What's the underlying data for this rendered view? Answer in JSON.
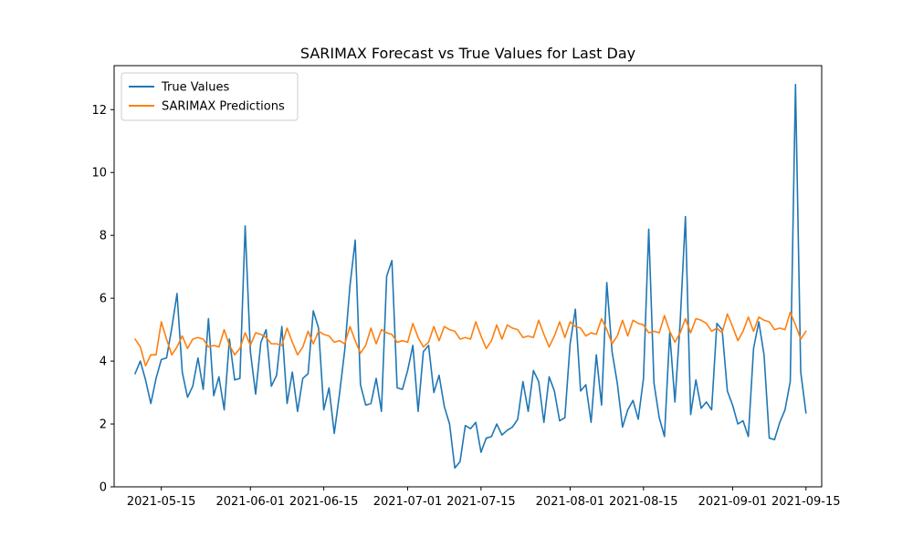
{
  "chart_data": {
    "type": "line",
    "title": "SARIMAX Forecast vs True Values for Last Day",
    "xlabel": "",
    "ylabel": "",
    "x_start": "2021-05-10",
    "x_tick_labels": [
      "2021-05-15",
      "2021-06-01",
      "2021-06-15",
      "2021-07-01",
      "2021-07-15",
      "2021-08-01",
      "2021-08-15",
      "2021-09-01",
      "2021-09-15"
    ],
    "y_ticks": [
      0,
      2,
      4,
      6,
      8,
      10,
      12
    ],
    "xlim": [
      "2021-05-06",
      "2021-09-18"
    ],
    "ylim": [
      0,
      13.4
    ],
    "grid": false,
    "legend_position": "top-left",
    "series": [
      {
        "name": "True Values",
        "color": "#1f77b4",
        "values": [
          3.6,
          4.0,
          3.4,
          2.65,
          3.45,
          4.05,
          4.1,
          5.05,
          6.15,
          3.65,
          2.85,
          3.2,
          4.1,
          3.1,
          5.35,
          2.9,
          3.5,
          2.45,
          4.7,
          3.4,
          3.45,
          8.3,
          4.3,
          2.95,
          4.6,
          5.0,
          3.2,
          3.55,
          5.1,
          2.65,
          3.65,
          2.4,
          3.45,
          3.6,
          5.6,
          5.05,
          2.45,
          3.15,
          1.7,
          2.95,
          4.35,
          6.4,
          7.85,
          3.25,
          2.6,
          2.65,
          3.45,
          2.4,
          6.7,
          7.2,
          3.15,
          3.1,
          3.7,
          4.5,
          2.4,
          4.3,
          4.5,
          3.0,
          3.55,
          2.55,
          2.0,
          0.6,
          0.8,
          1.95,
          1.85,
          2.05,
          1.1,
          1.55,
          1.6,
          2.0,
          1.65,
          1.8,
          1.9,
          2.15,
          3.35,
          2.4,
          3.7,
          3.35,
          2.05,
          3.5,
          3.05,
          2.1,
          2.2,
          4.55,
          5.65,
          3.05,
          3.25,
          2.05,
          4.2,
          2.6,
          6.5,
          4.3,
          3.3,
          1.9,
          2.45,
          2.75,
          2.15,
          3.45,
          8.2,
          3.3,
          2.2,
          1.6,
          4.9,
          2.7,
          5.25,
          8.6,
          2.3,
          3.4,
          2.5,
          2.7,
          2.45,
          5.2,
          5.0,
          3.05,
          2.6,
          2.0,
          2.1,
          1.6,
          4.4,
          5.25,
          4.2,
          1.55,
          1.5,
          2.05,
          2.45,
          3.35,
          12.8,
          3.65,
          2.35
        ]
      },
      {
        "name": "SARIMAX Predictions",
        "color": "#ff7f0e",
        "values": [
          4.7,
          4.45,
          3.85,
          4.2,
          4.2,
          5.25,
          4.7,
          4.2,
          4.45,
          4.8,
          4.4,
          4.7,
          4.75,
          4.7,
          4.45,
          4.5,
          4.45,
          5.0,
          4.5,
          4.2,
          4.4,
          4.9,
          4.5,
          4.9,
          4.85,
          4.75,
          4.55,
          4.55,
          4.5,
          5.05,
          4.6,
          4.2,
          4.45,
          4.95,
          4.55,
          4.95,
          4.85,
          4.8,
          4.6,
          4.65,
          4.55,
          5.1,
          4.65,
          4.25,
          4.5,
          5.05,
          4.55,
          5.0,
          4.9,
          4.85,
          4.6,
          4.65,
          4.6,
          5.2,
          4.75,
          4.45,
          4.6,
          5.1,
          4.65,
          5.1,
          5.0,
          4.95,
          4.7,
          4.75,
          4.7,
          5.25,
          4.8,
          4.4,
          4.65,
          5.15,
          4.7,
          5.15,
          5.05,
          5.0,
          4.75,
          4.8,
          4.75,
          5.3,
          4.85,
          4.45,
          4.8,
          5.25,
          4.75,
          5.25,
          5.1,
          5.05,
          4.8,
          4.9,
          4.85,
          5.35,
          5.0,
          4.55,
          4.8,
          5.3,
          4.8,
          5.3,
          5.2,
          5.15,
          4.9,
          4.95,
          4.9,
          5.45,
          4.95,
          4.6,
          4.9,
          5.35,
          4.9,
          5.35,
          5.3,
          5.2,
          4.95,
          5.05,
          4.9,
          5.5,
          5.1,
          4.65,
          4.95,
          5.4,
          4.95,
          5.4,
          5.3,
          5.25,
          5.0,
          5.05,
          5.0,
          5.55,
          5.15,
          4.7,
          4.95
        ]
      }
    ]
  }
}
